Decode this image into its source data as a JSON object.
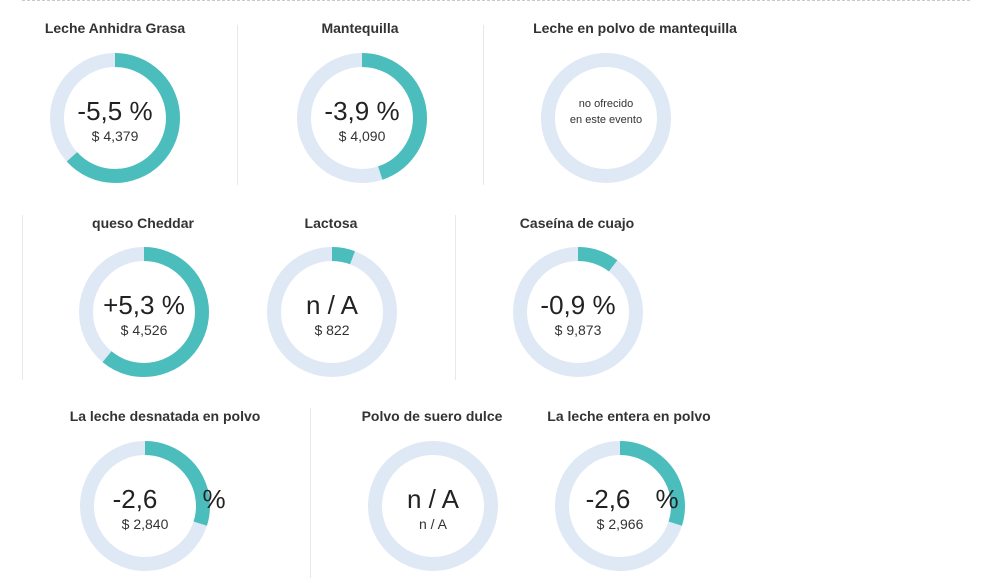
{
  "colors": {
    "track": "#dfe9f5",
    "fill": "#4cbdbd"
  },
  "chart_data": [
    {
      "type": "donut",
      "title": "Leche Anhidra Grasa",
      "change_label": "-5,5 %",
      "price_label": "$ 4,379",
      "change_pct": -5.5
    },
    {
      "type": "donut",
      "title": "Mantequilla",
      "change_label": "-3,9 %",
      "price_label": "$ 4,090",
      "change_pct": -3.9
    },
    {
      "type": "donut",
      "title": "Leche en polvo de mantequilla",
      "note_line1": "no ofrecido",
      "note_line2": "en este evento",
      "change_pct": 0
    },
    {
      "type": "donut",
      "title": "queso Cheddar",
      "change_label": "+5,3 %",
      "price_label": "$ 4,526",
      "change_pct": 5.3
    },
    {
      "type": "donut",
      "title": "Lactosa",
      "change_label": "n / A",
      "price_label": "$ 822",
      "change_pct": 0.5
    },
    {
      "type": "donut",
      "title": "Caseína de cuajo",
      "change_label": "-0,9 %",
      "price_label": "$ 9,873",
      "change_pct": -0.9
    },
    {
      "type": "donut",
      "title": "La leche desnatada en polvo",
      "change_label": "-2,6",
      "change_label_suffix": "%",
      "price_label": "$ 2,840",
      "change_pct": -2.6
    },
    {
      "type": "donut",
      "title": "Polvo de suero dulce",
      "change_label": "n / A",
      "price_label": "n / A",
      "change_pct": 0
    },
    {
      "type": "donut",
      "title": "La leche entera en polvo",
      "change_label": "-2,6",
      "change_label_suffix": "%",
      "price_label": "$ 2,966",
      "change_pct": -2.6
    }
  ]
}
